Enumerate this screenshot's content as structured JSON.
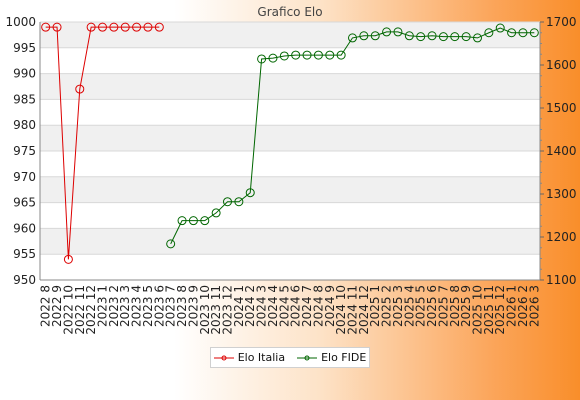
{
  "chart_data": {
    "type": "line",
    "title": "Grafico Elo",
    "categories": [
      "2022 8",
      "2022 9",
      "2022 10",
      "2022 11",
      "2022 12",
      "2023 1",
      "2023 2",
      "2023 3",
      "2023 4",
      "2023 5",
      "2023 6",
      "2023 7",
      "2023 8",
      "2023 9",
      "2023 10",
      "2023 11",
      "2023 12",
      "2024 1",
      "2024 2",
      "2024 3",
      "2024 4",
      "2024 5",
      "2024 6",
      "2024 7",
      "2024 8",
      "2024 9",
      "2024 10",
      "2024 11",
      "2024 12",
      "2025 1",
      "2025 2",
      "2025 3",
      "2025 4",
      "2025 5",
      "2025 6",
      "2025 7",
      "2025 8",
      "2025 9",
      "2025 10",
      "2025 11",
      "2025 12",
      "2026 1",
      "2026 2",
      "2026 3"
    ],
    "y_left": {
      "min": 950,
      "max": 1000,
      "ticks": [
        950,
        955,
        960,
        965,
        970,
        975,
        980,
        985,
        990,
        995,
        1000
      ]
    },
    "y_right": {
      "min": 1100,
      "max": 1700,
      "ticks": [
        1100,
        1200,
        1300,
        1400,
        1500,
        1600,
        1700
      ]
    },
    "grid": true,
    "legend_position": "bottom",
    "series": [
      {
        "name": "Elo Italia",
        "axis": "left",
        "color": "#dd0000",
        "values": [
          999,
          999,
          954,
          987,
          999,
          999,
          999,
          999,
          999,
          999,
          999,
          null,
          null,
          null,
          null,
          null,
          null,
          null,
          null,
          null,
          null,
          null,
          null,
          null,
          null,
          null,
          null,
          null,
          null,
          null,
          null,
          null,
          null,
          null,
          null,
          null,
          null,
          null,
          null,
          null,
          null,
          null,
          null,
          null
        ]
      },
      {
        "name": "Elo FIDE",
        "axis": "right",
        "color": "#006600",
        "values": [
          null,
          null,
          null,
          null,
          null,
          null,
          null,
          null,
          null,
          null,
          null,
          1184,
          1238,
          1238,
          1238,
          1256,
          1282,
          1282,
          1303,
          1614,
          1616,
          1621,
          1623,
          1623,
          1623,
          1623,
          1623,
          1663,
          1668,
          1668,
          1677,
          1677,
          1668,
          1666,
          1668,
          1666,
          1666,
          1666,
          1663,
          1675,
          1686,
          1675,
          1675,
          1675
        ]
      }
    ]
  }
}
